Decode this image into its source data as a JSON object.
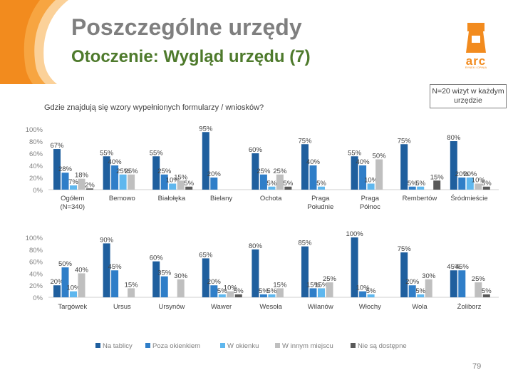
{
  "header": {
    "title": "Poszczególne urzędy",
    "subtitle": "Otoczenie: Wygląd urzędu (7)",
    "logo_text": "arc",
    "logo_subtext": "RYNEK i OPINIA"
  },
  "question": "Gdzie znajdują się wzory wypełnionych formularzy / wniosków?",
  "sample_note": "N=20 wizyt w każdym urzędzie",
  "page_number": "79",
  "colors": {
    "swirl": "#f7a541",
    "title_gray": "#7f7f7f",
    "subtitle_green": "#4e7a2c",
    "logo_orange": "#f28b1e"
  },
  "chart_data": [
    {
      "type": "bar",
      "yticks": [
        "100%",
        "80%",
        "60%",
        "40%",
        "20%",
        "0%"
      ],
      "ylim": [
        0,
        100
      ],
      "categories": [
        [
          "Ogółem",
          "(N=340)"
        ],
        [
          "Bemowo"
        ],
        [
          "Białołęka"
        ],
        [
          "Bielany"
        ],
        [
          "Ochota"
        ],
        [
          "Praga",
          "Południe"
        ],
        [
          "Praga",
          "Północ"
        ],
        [
          "Rembertów"
        ],
        [
          "Śródmieście"
        ]
      ],
      "series": [
        {
          "name": "Na tablicy",
          "color": "#1f5f9e",
          "values": [
            67,
            55,
            55,
            95,
            60,
            75,
            55,
            75,
            80
          ],
          "labels": [
            "67%",
            "55%",
            "55%",
            "95%",
            "60%",
            "75%",
            "55%",
            "75%",
            "80%"
          ]
        },
        {
          "name": "Poza okienkiem",
          "color": "#2f7ec8",
          "values": [
            28,
            40,
            25,
            20,
            25,
            40,
            40,
            5,
            20
          ],
          "labels": [
            "28%",
            "40%",
            "25%",
            "20%",
            "25%",
            "40%",
            "40%",
            "5%",
            "20%"
          ]
        },
        {
          "name": "W okienku",
          "color": "#5fb7ee",
          "values": [
            7,
            25,
            10,
            0,
            5,
            5,
            10,
            5,
            20
          ],
          "labels": [
            "7%",
            "25%",
            "10%",
            "",
            "5%",
            "5%",
            "10%",
            "5%",
            "20%"
          ]
        },
        {
          "name": "W innym miejscu",
          "color": "#bfbfbf",
          "values": [
            18,
            25,
            15,
            0,
            25,
            0,
            50,
            0,
            10
          ],
          "labels": [
            "18%",
            "25%",
            "15%",
            "",
            "25%",
            "",
            "50%",
            "",
            "10%"
          ]
        },
        {
          "name": "Nie są dostępne",
          "color": "#595959",
          "values": [
            2,
            0,
            5,
            0,
            5,
            0,
            0,
            15,
            5
          ],
          "labels": [
            "2%",
            "",
            "5%",
            "",
            "5%",
            "",
            "",
            "15%",
            "5%"
          ]
        }
      ]
    },
    {
      "type": "bar",
      "yticks": [
        "100%",
        "80%",
        "60%",
        "40%",
        "20%",
        "0%"
      ],
      "ylim": [
        0,
        100
      ],
      "categories": [
        [
          "Targówek"
        ],
        [
          "Ursus"
        ],
        [
          "Ursynów"
        ],
        [
          "Wawer"
        ],
        [
          "Wesoła"
        ],
        [
          "Wilanów"
        ],
        [
          "Włochy"
        ],
        [
          "Wola"
        ],
        [
          "Żoliborz"
        ]
      ],
      "series": [
        {
          "name": "Na tablicy",
          "color": "#1f5f9e",
          "values": [
            20,
            90,
            60,
            65,
            80,
            85,
            100,
            75,
            45
          ],
          "labels": [
            "20%",
            "90%",
            "60%",
            "65%",
            "80%",
            "85%",
            "100%",
            "75%",
            "45%"
          ]
        },
        {
          "name": "Poza okienkiem",
          "color": "#2f7ec8",
          "values": [
            50,
            45,
            35,
            20,
            5,
            15,
            10,
            20,
            45
          ],
          "labels": [
            "50%",
            "45%",
            "35%",
            "20%",
            "5%",
            "15%",
            "10%",
            "20%",
            "45%"
          ]
        },
        {
          "name": "W okienku",
          "color": "#5fb7ee",
          "values": [
            10,
            0,
            0,
            5,
            5,
            15,
            5,
            5,
            0
          ],
          "labels": [
            "10%",
            "",
            "",
            "5%",
            "5%",
            "15%",
            "5%",
            "5%",
            ""
          ]
        },
        {
          "name": "W innym miejscu",
          "color": "#bfbfbf",
          "values": [
            40,
            15,
            30,
            10,
            15,
            25,
            0,
            30,
            25
          ],
          "labels": [
            "40%",
            "15%",
            "30%",
            "10%",
            "15%",
            "25%",
            "",
            "30%",
            "25%"
          ]
        },
        {
          "name": "Nie są dostępne",
          "color": "#595959",
          "values": [
            0,
            0,
            0,
            5,
            0,
            0,
            0,
            0,
            5
          ],
          "labels": [
            "",
            "",
            "",
            "5%",
            "",
            "",
            "",
            "",
            "5%"
          ]
        }
      ]
    }
  ]
}
